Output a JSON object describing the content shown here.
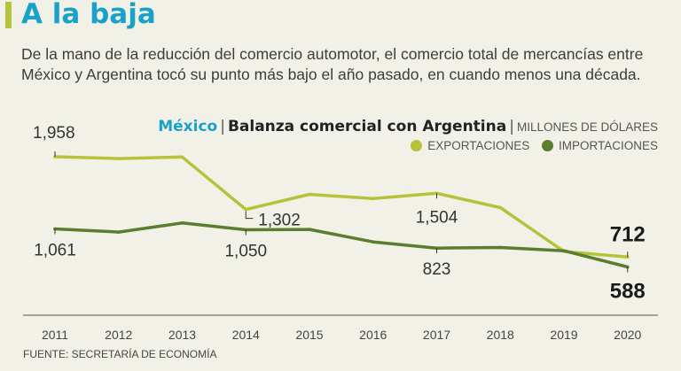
{
  "header": {
    "title": "A la baja",
    "description": "De la mano de la reducción del comercio automotor, el comercio total de mercancías entre México y Argentina tocó su punto más bajo el año pasado, en cuando menos una década."
  },
  "chart_title": {
    "country": "México",
    "separator": "|",
    "main": "Balanza comercial con Argentina",
    "units": "MILLONES DE DÓLARES"
  },
  "colors": {
    "accent": "#b7c23b",
    "title_blue": "#1aa1c9",
    "exports": "#b7c23b",
    "imports": "#5a7d2e"
  },
  "chart_data": {
    "type": "line",
    "x": [
      "2011",
      "2012",
      "2013",
      "2014",
      "2015",
      "2016",
      "2017",
      "2018",
      "2019",
      "2020"
    ],
    "series": [
      {
        "name": "EXPORTACIONES",
        "values": [
          1958,
          1935,
          1955,
          1302,
          1490,
          1438,
          1504,
          1325,
          781,
          712
        ]
      },
      {
        "name": "IMPORTACIONES",
        "values": [
          1061,
          1022,
          1135,
          1050,
          1055,
          900,
          823,
          830,
          790,
          588
        ]
      }
    ],
    "data_labels": [
      {
        "series": 0,
        "index": 0,
        "text": "1,958"
      },
      {
        "series": 0,
        "index": 3,
        "text": "1,302"
      },
      {
        "series": 0,
        "index": 6,
        "text": "1,504"
      },
      {
        "series": 0,
        "index": 9,
        "text": "712"
      },
      {
        "series": 1,
        "index": 0,
        "text": "1,061"
      },
      {
        "series": 1,
        "index": 3,
        "text": "1,050"
      },
      {
        "series": 1,
        "index": 6,
        "text": "823"
      },
      {
        "series": 1,
        "index": 9,
        "text": "588"
      }
    ],
    "ylim": [
      0,
      2000
    ],
    "grid": false,
    "legend": "top-right",
    "source": "FUENTE: SECRETARÍA DE ECONOMÍA"
  }
}
